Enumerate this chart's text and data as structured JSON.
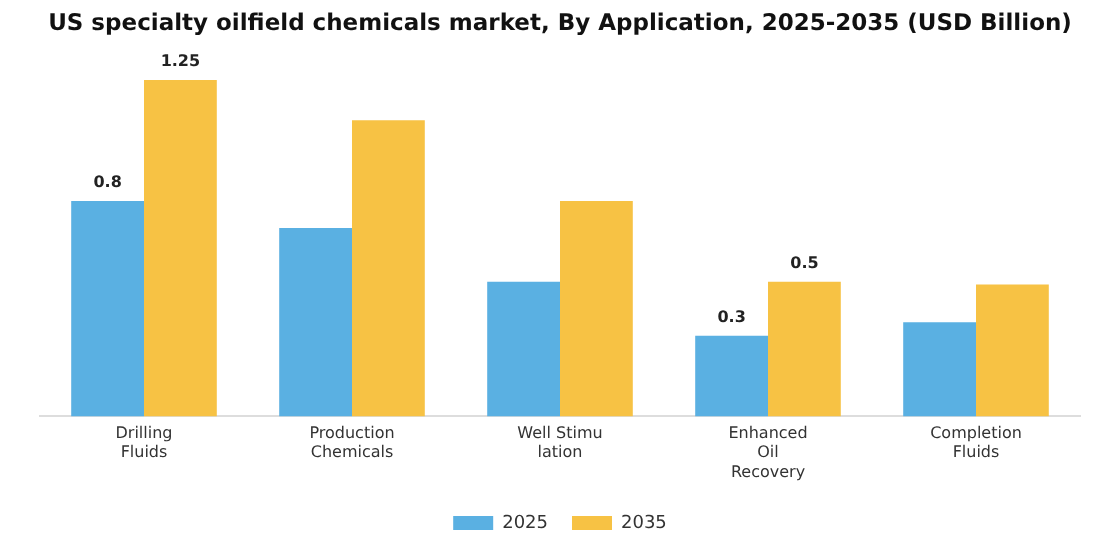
{
  "chart_data": {
    "type": "bar",
    "title": "US specialty oilfield chemicals market, By Application, 2025-2035 (USD Billion)",
    "categories": [
      "Drilling\nFluids",
      "Production\nChemicals",
      "Well Stimu\nlation",
      "Enhanced\nOil\nRecovery",
      "Completion\nFluids"
    ],
    "series": [
      {
        "name": "2025",
        "color": "#5ab0e2",
        "values": [
          0.8,
          0.7,
          0.5,
          0.3,
          0.35
        ],
        "value_labels": [
          "0.8",
          null,
          null,
          "0.3",
          null
        ]
      },
      {
        "name": "2035",
        "color": "#f7c244",
        "values": [
          1.25,
          1.1,
          0.8,
          0.5,
          0.49
        ],
        "value_labels": [
          "1.25",
          null,
          null,
          "0.5",
          null
        ]
      }
    ],
    "ylim": [
      0,
      1.25
    ],
    "tick_labels": "x",
    "grid": false,
    "legend": "bottom"
  }
}
